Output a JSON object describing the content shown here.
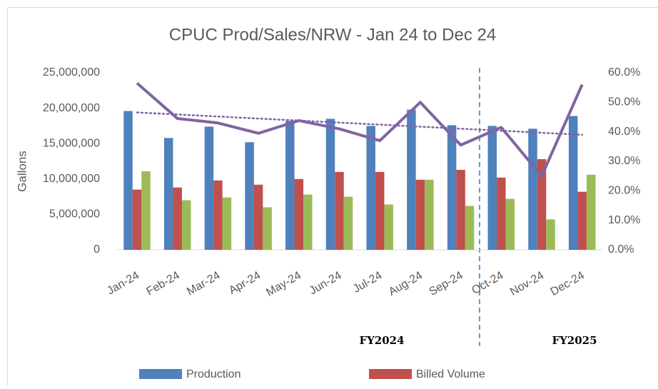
{
  "chart_data": {
    "type": "bar",
    "title": "CPUC Prod/Sales/NRW - Jan 24 to  Dec 24",
    "y_label": "Gallons",
    "annotations": [
      "FY2024",
      "FY2025"
    ],
    "categories": [
      "Jan-24",
      "Feb-24",
      "Mar-24",
      "Apr-24",
      "May-24",
      "Jun-24",
      "Jul-24",
      "Aug-24",
      "Sep-24",
      "Oct-24",
      "Nov-24",
      "Dec-24"
    ],
    "series": [
      {
        "name": "Production",
        "color": "#4f81bd",
        "values": [
          19600000,
          15800000,
          17400000,
          15200000,
          18200000,
          18500000,
          17500000,
          19800000,
          17600000,
          17500000,
          17100000,
          18900000
        ]
      },
      {
        "name": "Billed Volume",
        "color": "#c0504d",
        "values": [
          8500000,
          8800000,
          9800000,
          9200000,
          10000000,
          11000000,
          11000000,
          9900000,
          11300000,
          10200000,
          12800000,
          8200000
        ]
      },
      {
        "color": "#9bbb59",
        "values": [
          11100000,
          7000000,
          7400000,
          6000000,
          7800000,
          7500000,
          6400000,
          9900000,
          6200000,
          7200000,
          4300000,
          10600000
        ]
      },
      {
        "type": "line",
        "axis": "y2",
        "color": "#8064a2",
        "trendline": true,
        "values": [
          56.5,
          44.5,
          43,
          39.5,
          43.8,
          41,
          37,
          50,
          35.5,
          41.5,
          25,
          56
        ]
      }
    ],
    "ylim": [
      0,
      25000000
    ],
    "yticks": [
      0,
      {
        "value": 5000000,
        "label": "5,000,000"
      },
      {
        "value": 10000000,
        "label": "10,000,000"
      },
      {
        "value": 15000000,
        "label": "15,000,000"
      },
      {
        "value": 20000000,
        "label": "20,000,000"
      },
      {
        "value": 25000000,
        "label": "25,000,000"
      }
    ],
    "y2lim": [
      0,
      60
    ],
    "y2ticks": [
      {
        "value": 0,
        "label": "0.0%"
      },
      {
        "value": 10,
        "label": "10.0%"
      },
      {
        "value": 20,
        "label": "20.0%"
      },
      {
        "value": 30,
        "label": "30.0%"
      },
      {
        "value": 40,
        "label": "40.0%"
      },
      {
        "value": 50,
        "label": "50.0%"
      },
      {
        "value": 60,
        "label": "60.0%"
      }
    ],
    "grid": false,
    "legend": "bottom"
  }
}
